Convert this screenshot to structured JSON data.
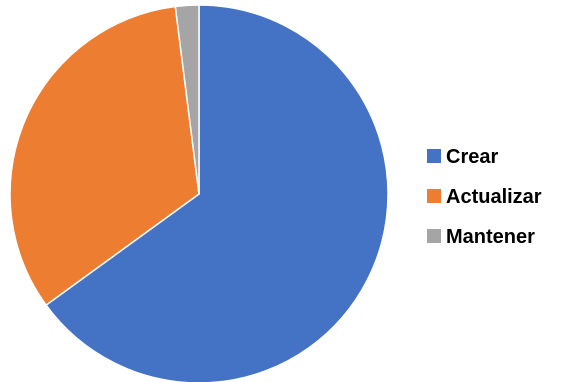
{
  "chart_data": {
    "type": "pie",
    "title": "",
    "categories": [
      "Crear",
      "Actualizar",
      "Mantener"
    ],
    "values": [
      65,
      33,
      2
    ],
    "colors": [
      "#4472C4",
      "#ED7D31",
      "#A5A5A5"
    ],
    "start_angle_deg": 0,
    "direction": "clockwise",
    "legend": {
      "position": "right"
    }
  }
}
